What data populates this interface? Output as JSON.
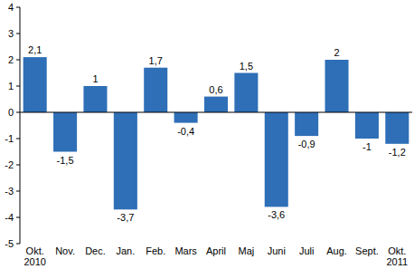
{
  "chart_data": {
    "type": "bar",
    "categories": [
      "Okt. 2010",
      "Nov.",
      "Dec.",
      "Jan.",
      "Feb.",
      "Mars",
      "April",
      "Maj",
      "Juni",
      "Juli",
      "Aug.",
      "Sept.",
      "Okt. 2011"
    ],
    "values": [
      2.1,
      -1.5,
      1,
      -3.7,
      1.7,
      -0.4,
      0.6,
      1.5,
      -3.6,
      -0.9,
      2,
      -1,
      -1.2
    ],
    "value_labels": [
      "2,1",
      "-1,5",
      "1",
      "-3,7",
      "1,7",
      "-0,4",
      "0,6",
      "1,5",
      "-3,6",
      "-0,9",
      "2",
      "-1",
      "-1,2"
    ],
    "color": "#2e6fb7",
    "ylim": [
      -5,
      4
    ],
    "yticks": [
      -5,
      -4,
      -3,
      -2,
      -1,
      0,
      1,
      2,
      3,
      4
    ],
    "grid": false,
    "data_labels": true
  }
}
